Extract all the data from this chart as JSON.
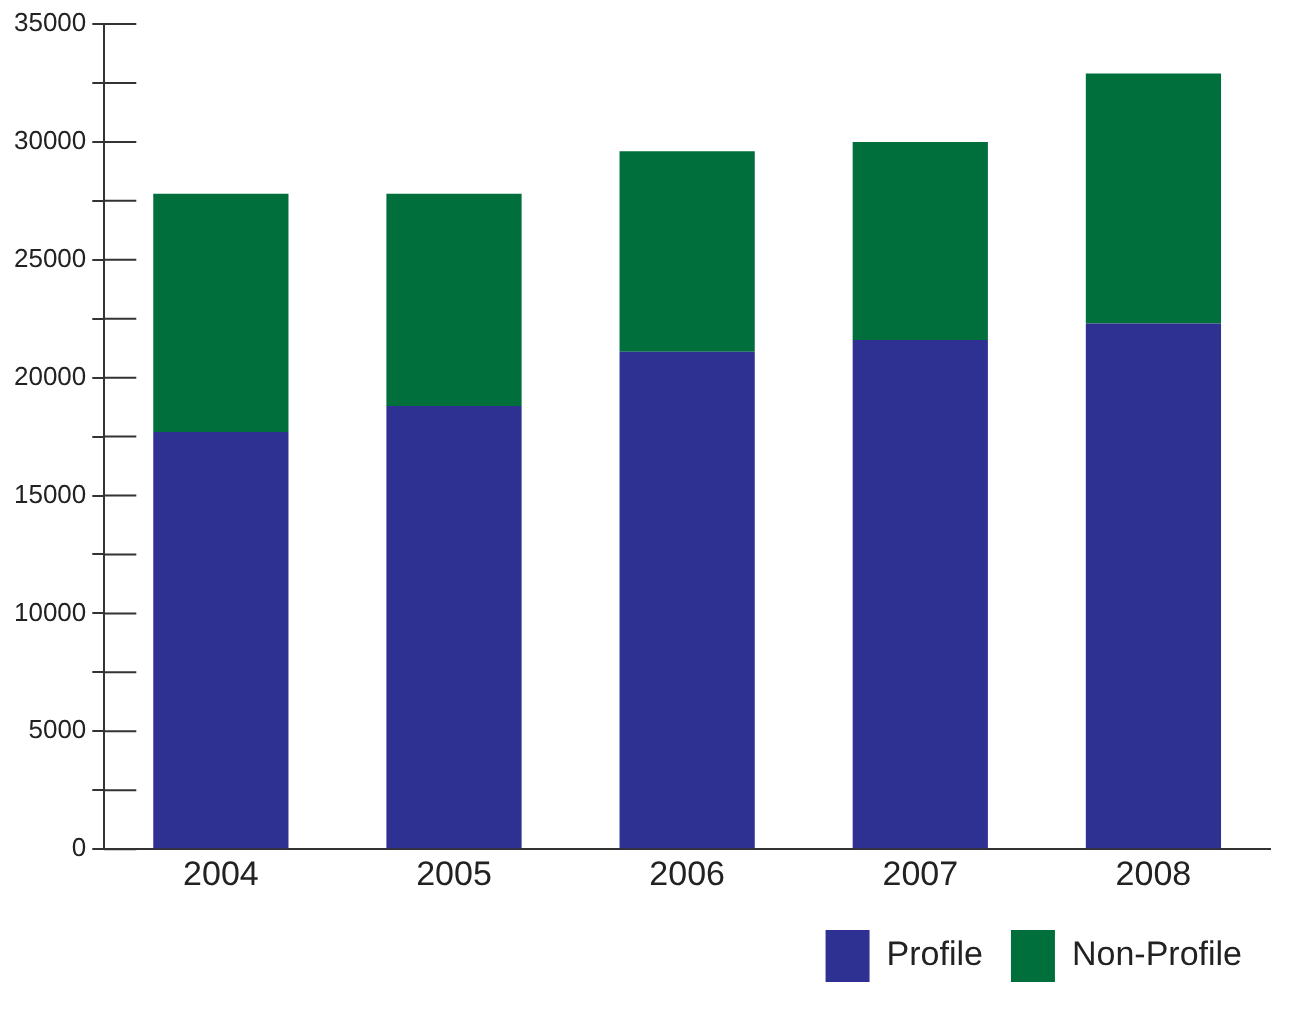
{
  "chart_data": {
    "type": "bar",
    "stacked": true,
    "categories": [
      "2004",
      "2005",
      "2006",
      "2007",
      "2008"
    ],
    "series": [
      {
        "name": "Profile",
        "color": "#2e3192",
        "values": [
          17700,
          18800,
          21100,
          21600,
          22300
        ]
      },
      {
        "name": "Non-Profile",
        "color": "#006f3c",
        "values": [
          10100,
          9000,
          8500,
          8400,
          10600
        ]
      }
    ],
    "ylim": [
      0,
      35000
    ],
    "yticks": [
      0,
      {
        "value": 2500,
        "label": null
      },
      5000,
      {
        "value": 7500,
        "label": null
      },
      10000,
      {
        "value": 12500,
        "label": null
      },
      15000,
      {
        "value": 17500,
        "label": null
      },
      20000,
      {
        "value": 22500,
        "label": null
      },
      25000,
      {
        "value": 27500,
        "label": null
      },
      30000,
      {
        "value": 32500,
        "label": null
      },
      35000
    ],
    "grid": false,
    "legend": "bottom"
  }
}
